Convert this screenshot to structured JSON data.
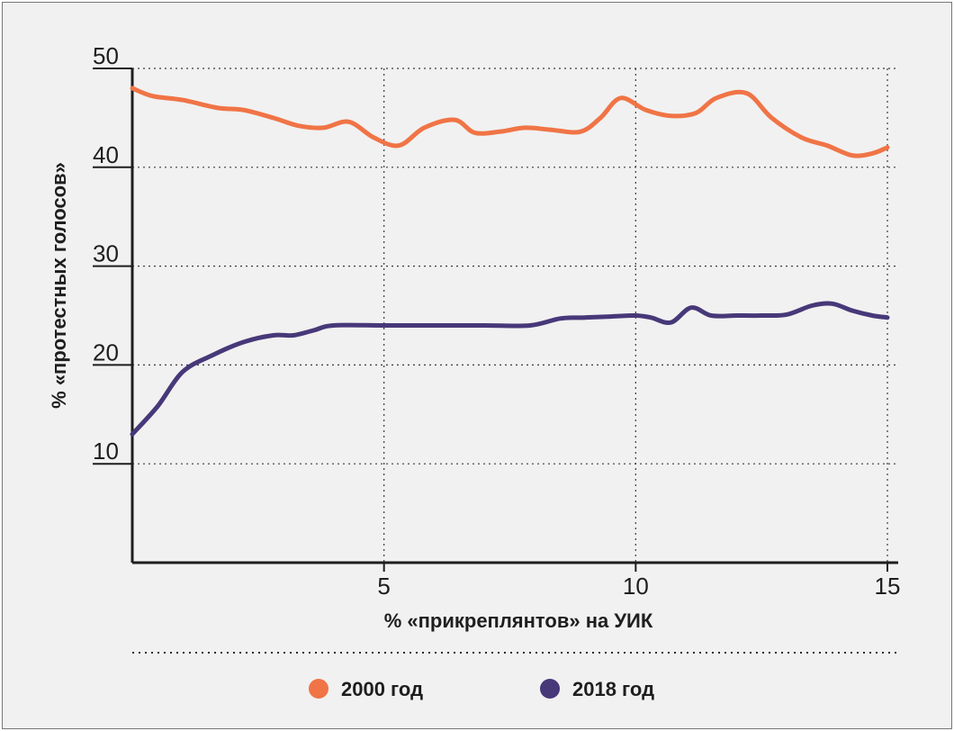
{
  "chart_data": {
    "type": "line",
    "xlabel": "% «прикреплянтов» на УИК",
    "ylabel": "% «протестных голосов»",
    "xlim": [
      0,
      15
    ],
    "ylim": [
      0,
      50
    ],
    "x_ticks": [
      5,
      10,
      15
    ],
    "x_tick_labels": [
      "5",
      "10",
      "15"
    ],
    "y_ticks": [
      10,
      20,
      30,
      40,
      50
    ],
    "y_tick_labels": [
      "10",
      "20",
      "30",
      "40",
      "50"
    ],
    "grid": true,
    "legend_position": "bottom",
    "series": [
      {
        "name": "2000 год",
        "color": "#f07446",
        "x": [
          0,
          0.4,
          1,
          1.7,
          2.2,
          2.8,
          3.3,
          3.8,
          4.3,
          4.8,
          5.3,
          5.8,
          6.4,
          6.8,
          7.3,
          7.8,
          8.3,
          8.9,
          9.3,
          9.7,
          10.2,
          10.7,
          11.2,
          11.6,
          12.2,
          12.7,
          13.3,
          13.8,
          14.3,
          14.7,
          15
        ],
        "y": [
          48,
          47.2,
          46.8,
          46,
          45.8,
          45,
          44.2,
          44,
          44.6,
          43,
          42.2,
          44,
          44.8,
          43.5,
          43.6,
          44,
          43.8,
          43.6,
          45,
          47,
          45.8,
          45.2,
          45.5,
          47,
          47.5,
          45,
          43,
          42.2,
          41.2,
          41.4,
          42
        ]
      },
      {
        "name": "2018 год",
        "color": "#473879",
        "x": [
          0,
          0.5,
          1,
          1.6,
          2.2,
          2.8,
          3.2,
          3.6,
          4,
          5,
          6,
          7,
          7.9,
          8.5,
          9,
          9.5,
          10,
          10.3,
          10.7,
          11.1,
          11.5,
          12,
          12.5,
          13,
          13.5,
          13.9,
          14.3,
          14.7,
          15
        ],
        "y": [
          13,
          15.8,
          19.3,
          21,
          22.3,
          23,
          23,
          23.5,
          24,
          24,
          24,
          24,
          24,
          24.7,
          24.8,
          24.9,
          25,
          24.8,
          24.3,
          25.8,
          25,
          25,
          25,
          25.1,
          26,
          26.2,
          25.5,
          25,
          24.8
        ]
      }
    ]
  }
}
